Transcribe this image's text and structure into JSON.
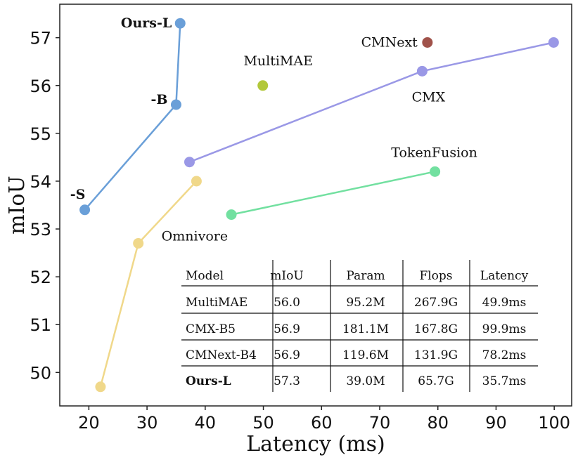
{
  "chart_data": {
    "type": "scatter",
    "xlabel": "Latency (ms)",
    "ylabel": "mIoU",
    "xlim": [
      15,
      103
    ],
    "ylim": [
      49.3,
      57.7
    ],
    "xticks": [
      20,
      30,
      40,
      50,
      60,
      70,
      80,
      90,
      100
    ],
    "yticks": [
      50,
      51,
      52,
      53,
      54,
      55,
      56,
      57
    ],
    "series": [
      {
        "name": "Ours",
        "color": "#6a9fd8",
        "connected": true,
        "points": [
          {
            "x": 19.3,
            "y": 53.4,
            "label": "-S"
          },
          {
            "x": 35.0,
            "y": 55.6,
            "label": "-B"
          },
          {
            "x": 35.7,
            "y": 57.3,
            "label": "Ours-L"
          }
        ]
      },
      {
        "name": "Omnivore",
        "color": "#f0d88a",
        "connected": true,
        "label": "Omnivore",
        "points": [
          {
            "x": 22.0,
            "y": 49.7
          },
          {
            "x": 28.5,
            "y": 52.7
          },
          {
            "x": 38.5,
            "y": 54.0
          }
        ]
      },
      {
        "name": "CMX",
        "color": "#9a98e6",
        "connected": true,
        "label": "CMX",
        "points": [
          {
            "x": 37.3,
            "y": 54.4
          },
          {
            "x": 77.3,
            "y": 56.3
          },
          {
            "x": 99.9,
            "y": 56.9
          }
        ]
      },
      {
        "name": "TokenFusion",
        "color": "#72e0a0",
        "connected": true,
        "label": "TokenFusion",
        "points": [
          {
            "x": 44.5,
            "y": 53.3
          },
          {
            "x": 79.5,
            "y": 54.2
          }
        ]
      },
      {
        "name": "MultiMAE",
        "color": "#b2c83a",
        "connected": false,
        "label": "MultiMAE",
        "points": [
          {
            "x": 49.9,
            "y": 56.0
          }
        ]
      },
      {
        "name": "CMNext",
        "color": "#a0524a",
        "connected": false,
        "label": "CMNext",
        "points": [
          {
            "x": 78.2,
            "y": 56.9
          }
        ]
      }
    ],
    "table": {
      "columns": [
        "Model",
        "mIoU",
        "Param",
        "Flops",
        "Latency"
      ],
      "rows": [
        [
          "MultiMAE",
          "56.0",
          "95.2M",
          "267.9G",
          "49.9ms"
        ],
        [
          "CMX-B5",
          "56.9",
          "181.1M",
          "167.8G",
          "99.9ms"
        ],
        [
          "CMNext-B4",
          "56.9",
          "119.6M",
          "131.9G",
          "78.2ms"
        ],
        [
          "Ours-L",
          "57.3",
          "39.0M",
          "65.7G",
          "35.7ms"
        ]
      ],
      "bold_row": 3
    }
  }
}
